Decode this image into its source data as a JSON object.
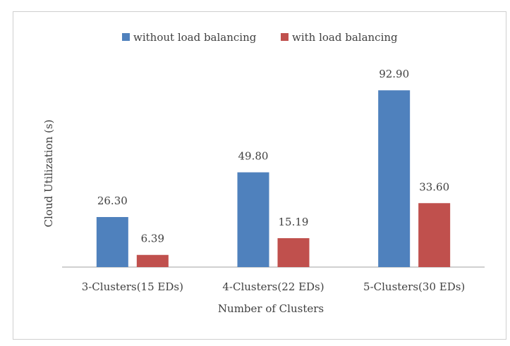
{
  "chart_data": {
    "type": "bar",
    "title": "",
    "xlabel": "Number of Clusters",
    "ylabel": "Cloud Utilization (s)",
    "categories": [
      "3-Clusters(15 EDs)",
      "4-Clusters(22 EDs)",
      "5-Clusters(30 EDs)"
    ],
    "series": [
      {
        "name": "without load balancing",
        "values": [
          26.3,
          49.8,
          92.9
        ],
        "labels": [
          "26.30",
          "49.80",
          "92.90"
        ],
        "color": "#4F81BD"
      },
      {
        "name": "with load balancing",
        "values": [
          6.39,
          15.19,
          33.6
        ],
        "labels": [
          "6.39",
          "15.19",
          "33.60"
        ],
        "color": "#C0504D"
      }
    ],
    "ylim": [
      0,
      100
    ],
    "grid": false,
    "legend": "top-center"
  }
}
